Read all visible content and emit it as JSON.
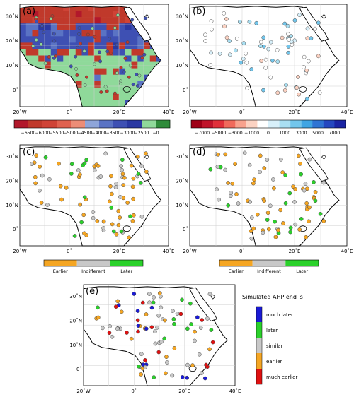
{
  "panels": {
    "a": {
      "label": "(a)"
    },
    "b": {
      "label": "(b)"
    },
    "c": {
      "label": "(c)"
    },
    "d": {
      "label": "(d)"
    },
    "e": {
      "label": "(e)"
    }
  },
  "axes": {
    "x_ticks": [
      "20˚W",
      "0˚",
      "20˚E",
      "40˚E"
    ],
    "y_ticks": [
      "30˚N",
      "20˚N",
      "10˚N",
      "0˚"
    ]
  },
  "colorbar_a": {
    "labels": [
      "−6500",
      "−6000",
      "−5500",
      "−5000",
      "−4500",
      "−4000",
      "−3500",
      "−3000",
      "−2500",
      "−0"
    ],
    "colors": [
      "#b2182b",
      "#c0392b",
      "#cf4336",
      "#e0614f",
      "#ec8d77",
      "#8ea5d9",
      "#5a73c4",
      "#3e50b3",
      "#2a38a2",
      "#8fd99a",
      "#2e8b3a"
    ]
  },
  "colorbar_b": {
    "labels": [
      "−7000",
      "−5000",
      "−3000",
      "−1000",
      "0",
      "1000",
      "3000",
      "5000",
      "7000"
    ],
    "colors": [
      "#9e0016",
      "#c0142a",
      "#e0303a",
      "#f06a5c",
      "#f8a28e",
      "#fcd2c2",
      "#ffffff",
      "#d8f0fa",
      "#a9dff2",
      "#72c6ec",
      "#3fa5e3",
      "#2f74d3",
      "#2447bf",
      "#1a24a3"
    ]
  },
  "legend_cd": {
    "labels": [
      "Earlier",
      "Indifferent",
      "Later"
    ],
    "colors": [
      "#f5a623",
      "#c8c8c8",
      "#2ad12a"
    ]
  },
  "legend_e": {
    "title": "Simulated AHP end is",
    "items": [
      {
        "label": "much later",
        "color": "#1a1ad6"
      },
      {
        "label": "later",
        "color": "#2ad12a"
      },
      {
        "label": "similar",
        "color": "#c8c8c8"
      },
      {
        "label": "earlier",
        "color": "#f5a623"
      },
      {
        "label": "much earlier",
        "color": "#e01010"
      }
    ]
  }
}
